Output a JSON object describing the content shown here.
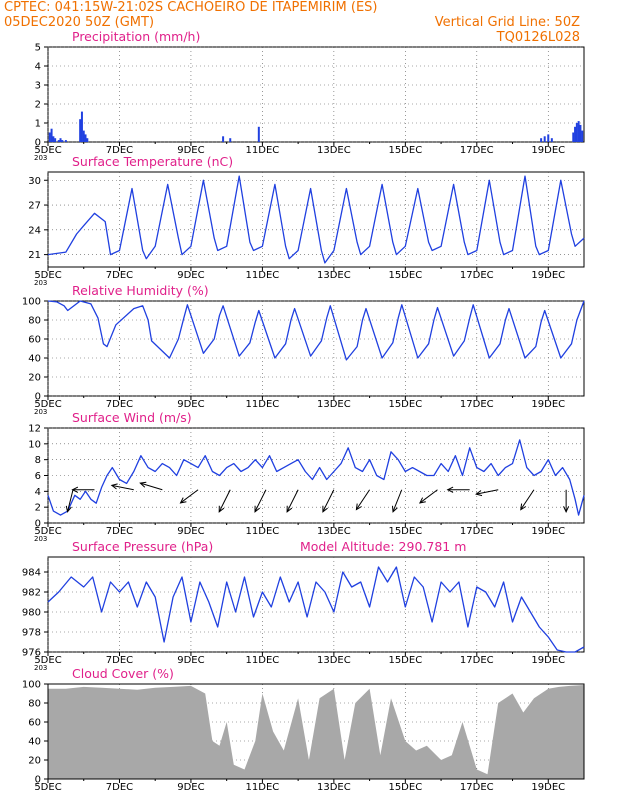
{
  "header": {
    "line1_left": "CPTEC:  041:15W-21:02S  CACHOEIRO DE ITAPEMIRIM (ES)",
    "line2_left": "05DEC2020 50Z (GMT)",
    "line2_right": "Vertical Grid Line: 50Z",
    "line3_right": "TQ0126L028"
  },
  "colors": {
    "header": "#f07000",
    "title": "#e0208a",
    "line": "#2040e0",
    "cloud": "#a8a8a8"
  },
  "chart_data": [
    {
      "id": "precip",
      "type": "bar",
      "title": "Precipitation (mm/h)",
      "ylim": [
        0,
        5
      ],
      "yticks": [
        0,
        1,
        2,
        3,
        4,
        5
      ],
      "xlim": [
        0,
        15
      ],
      "xticks": [
        "5DEC",
        "7DEC",
        "9DEC",
        "11DEC",
        "13DEC",
        "15DEC",
        "17DEC",
        "19DEC"
      ],
      "x_note": "203",
      "x": [
        0.05,
        0.1,
        0.15,
        0.2,
        0.3,
        0.35,
        0.4,
        0.5,
        0.9,
        0.95,
        1.0,
        1.05,
        1.1,
        4.9,
        5.1,
        5.9,
        13.8,
        13.9,
        14.0,
        14.1,
        14.7,
        14.75,
        14.8,
        14.85,
        14.9,
        14.95
      ],
      "values": [
        0.5,
        0.7,
        0.3,
        0.2,
        0.1,
        0.2,
        0.1,
        0.1,
        1.2,
        1.6,
        0.6,
        0.4,
        0.2,
        0.3,
        0.2,
        0.8,
        0.2,
        0.3,
        0.4,
        0.2,
        0.5,
        0.8,
        1.0,
        1.1,
        0.9,
        0.6
      ]
    },
    {
      "id": "temp",
      "type": "line",
      "title": "Surface Temperature (nC)",
      "ylim": [
        19.5,
        31
      ],
      "yticks": [
        21,
        24,
        27,
        30
      ],
      "xlim": [
        0,
        15
      ],
      "xticks": [
        "5DEC",
        "7DEC",
        "9DEC",
        "11DEC",
        "13DEC",
        "15DEC",
        "17DEC",
        "19DEC"
      ],
      "x_note": "203",
      "x": [
        0,
        0.5,
        0.8,
        1.0,
        1.3,
        1.6,
        1.75,
        2.0,
        2.35,
        2.65,
        2.75,
        3.0,
        3.35,
        3.65,
        3.75,
        4.0,
        4.35,
        4.65,
        4.75,
        5.0,
        5.35,
        5.65,
        5.75,
        6.0,
        6.35,
        6.65,
        6.75,
        7.0,
        7.35,
        7.65,
        7.75,
        8.0,
        8.35,
        8.65,
        8.75,
        9.0,
        9.35,
        9.65,
        9.75,
        10.0,
        10.35,
        10.65,
        10.75,
        11.0,
        11.35,
        11.65,
        11.75,
        12.0,
        12.35,
        12.65,
        12.75,
        13.0,
        13.35,
        13.65,
        13.75,
        14.0,
        14.35,
        14.65,
        14.75,
        15.0
      ],
      "values": [
        21.0,
        21.3,
        23.5,
        24.5,
        26.0,
        25.0,
        21.0,
        21.5,
        29.0,
        21.5,
        20.5,
        22.0,
        29.5,
        23.0,
        21.0,
        22.0,
        30.0,
        23.0,
        21.5,
        22.0,
        30.5,
        22.5,
        21.5,
        22.0,
        29.5,
        22.0,
        20.5,
        21.5,
        29.0,
        21.5,
        20.0,
        21.5,
        29.0,
        22.5,
        21.0,
        22.0,
        29.5,
        22.5,
        21.0,
        22.0,
        29.0,
        22.5,
        21.5,
        22.0,
        29.5,
        22.5,
        21.0,
        21.5,
        30.0,
        22.5,
        21.0,
        21.5,
        30.5,
        22.0,
        21.0,
        21.5,
        30.0,
        23.5,
        22.0,
        23.0
      ]
    },
    {
      "id": "rh",
      "type": "line",
      "title": "Relative Humidity (%)",
      "ylim": [
        0,
        100
      ],
      "yticks": [
        0,
        20,
        40,
        60,
        80,
        100
      ],
      "xlim": [
        0,
        15
      ],
      "xticks": [
        "5DEC",
        "7DEC",
        "9DEC",
        "11DEC",
        "13DEC",
        "15DEC",
        "17DEC",
        "19DEC"
      ],
      "x_note": "203",
      "x": [
        0,
        0.25,
        0.45,
        0.55,
        0.9,
        1.2,
        1.4,
        1.55,
        1.65,
        1.9,
        2.4,
        2.65,
        2.8,
        2.9,
        3.4,
        3.65,
        3.8,
        3.9,
        4.35,
        4.65,
        4.8,
        4.9,
        5.35,
        5.65,
        5.8,
        5.9,
        6.35,
        6.65,
        6.8,
        6.9,
        7.35,
        7.65,
        7.8,
        7.9,
        8.35,
        8.65,
        8.8,
        8.9,
        9.35,
        9.65,
        9.8,
        9.9,
        10.35,
        10.65,
        10.8,
        10.9,
        11.35,
        11.65,
        11.8,
        11.9,
        12.35,
        12.65,
        12.8,
        12.9,
        13.35,
        13.65,
        13.8,
        13.9,
        14.35,
        14.65,
        14.8,
        15.0
      ],
      "values": [
        100,
        99,
        95,
        90,
        100,
        97,
        82,
        55,
        52,
        75,
        92,
        95,
        80,
        58,
        40,
        60,
        82,
        96,
        45,
        60,
        85,
        95,
        42,
        56,
        78,
        90,
        40,
        55,
        80,
        92,
        42,
        58,
        82,
        95,
        38,
        52,
        80,
        92,
        40,
        56,
        82,
        96,
        40,
        55,
        80,
        93,
        42,
        58,
        82,
        96,
        40,
        55,
        80,
        92,
        40,
        52,
        78,
        90,
        40,
        55,
        80,
        100
      ]
    },
    {
      "id": "wind",
      "type": "line",
      "title": "Surface Wind (m/s)",
      "ylim": [
        0,
        12
      ],
      "yticks": [
        0,
        2,
        4,
        6,
        8,
        10,
        12
      ],
      "xlim": [
        0,
        15
      ],
      "xticks": [
        "5DEC",
        "7DEC",
        "9DEC",
        "11DEC",
        "13DEC",
        "15DEC",
        "17DEC",
        "19DEC"
      ],
      "x_note": "203",
      "x": [
        0,
        0.15,
        0.35,
        0.55,
        0.75,
        0.9,
        1.05,
        1.2,
        1.35,
        1.5,
        1.65,
        1.8,
        2.0,
        2.2,
        2.4,
        2.6,
        2.8,
        3.0,
        3.2,
        3.4,
        3.6,
        3.8,
        4.0,
        4.2,
        4.4,
        4.6,
        4.8,
        5.0,
        5.2,
        5.4,
        5.6,
        5.8,
        6.0,
        6.2,
        6.4,
        6.6,
        6.8,
        7.0,
        7.2,
        7.4,
        7.6,
        7.8,
        8.0,
        8.2,
        8.4,
        8.6,
        8.8,
        9.0,
        9.2,
        9.4,
        9.6,
        9.8,
        10.0,
        10.2,
        10.4,
        10.6,
        10.8,
        11.0,
        11.2,
        11.4,
        11.6,
        11.8,
        12.0,
        12.2,
        12.4,
        12.6,
        12.8,
        13.0,
        13.2,
        13.4,
        13.6,
        13.8,
        14.0,
        14.2,
        14.4,
        14.6,
        14.75,
        14.85,
        15.0
      ],
      "values": [
        3.5,
        1.5,
        1.0,
        1.5,
        3.5,
        3.0,
        4.0,
        3.0,
        2.5,
        4.5,
        6.0,
        7.0,
        5.5,
        5.0,
        6.5,
        8.5,
        7.0,
        6.5,
        7.5,
        7.0,
        6.0,
        8.0,
        7.5,
        7.0,
        8.5,
        6.5,
        6.0,
        7.0,
        7.5,
        6.5,
        7.0,
        8.0,
        7.0,
        8.5,
        6.5,
        7.0,
        7.5,
        8.0,
        6.5,
        5.5,
        7.0,
        5.5,
        6.5,
        7.5,
        9.5,
        7.0,
        6.5,
        8.0,
        6.0,
        5.5,
        9.0,
        8.0,
        6.5,
        7.0,
        6.5,
        6.0,
        6.0,
        7.5,
        6.5,
        8.5,
        6.0,
        9.5,
        7.0,
        6.5,
        7.5,
        6.0,
        7.0,
        7.5,
        10.5,
        7.0,
        6.0,
        6.5,
        8.0,
        6.0,
        7.0,
        5.5,
        3.0,
        1.0,
        3.5
      ],
      "vectors": [
        {
          "x": 0.7,
          "u": -0.25,
          "v": -1.0
        },
        {
          "x": 1.3,
          "u": -1.0,
          "v": 0.0
        },
        {
          "x": 2.4,
          "u": -1.0,
          "v": 0.2
        },
        {
          "x": 3.2,
          "u": -1.0,
          "v": 0.3
        },
        {
          "x": 4.2,
          "u": -0.8,
          "v": -0.6
        },
        {
          "x": 5.1,
          "u": -0.5,
          "v": -1.0
        },
        {
          "x": 6.1,
          "u": -0.5,
          "v": -1.0
        },
        {
          "x": 7.0,
          "u": -0.5,
          "v": -1.0
        },
        {
          "x": 8.0,
          "u": -0.5,
          "v": -1.0
        },
        {
          "x": 9.0,
          "u": -0.6,
          "v": -0.9
        },
        {
          "x": 9.9,
          "u": -0.4,
          "v": -1.0
        },
        {
          "x": 10.9,
          "u": -0.8,
          "v": -0.6
        },
        {
          "x": 11.8,
          "u": -1.0,
          "v": 0.0
        },
        {
          "x": 12.6,
          "u": -1.0,
          "v": -0.2
        },
        {
          "x": 13.6,
          "u": -0.6,
          "v": -0.9
        },
        {
          "x": 14.5,
          "u": 0.0,
          "v": -1.0
        }
      ]
    },
    {
      "id": "pressure",
      "type": "line",
      "title": "Surface Pressure (hPa)",
      "annotation": "Model Altitude: 290.781 m",
      "ylim": [
        976,
        985.5
      ],
      "yticks": [
        976,
        978,
        980,
        982,
        984
      ],
      "xlim": [
        0,
        15
      ],
      "xticks": [
        "5DEC",
        "7DEC",
        "9DEC",
        "11DEC",
        "13DEC",
        "15DEC",
        "17DEC",
        "19DEC"
      ],
      "x_note": "203",
      "x": [
        0,
        0.3,
        0.65,
        1.0,
        1.25,
        1.5,
        1.75,
        2.0,
        2.25,
        2.5,
        2.75,
        3.0,
        3.25,
        3.5,
        3.75,
        4.0,
        4.25,
        4.5,
        4.75,
        5.0,
        5.25,
        5.5,
        5.75,
        6.0,
        6.25,
        6.5,
        6.75,
        7.0,
        7.25,
        7.5,
        7.75,
        8.0,
        8.25,
        8.5,
        8.75,
        9.0,
        9.25,
        9.5,
        9.75,
        10.0,
        10.25,
        10.5,
        10.75,
        11.0,
        11.25,
        11.5,
        11.75,
        12.0,
        12.25,
        12.5,
        12.75,
        13.0,
        13.25,
        13.5,
        13.75,
        14.0,
        14.25,
        14.5,
        14.75,
        15.0
      ],
      "values": [
        981.0,
        982.0,
        983.5,
        982.5,
        983.5,
        980.0,
        983.0,
        982.0,
        983.0,
        980.5,
        983.0,
        981.5,
        977.0,
        981.5,
        983.5,
        979.0,
        983.0,
        981.0,
        978.5,
        983.0,
        980.0,
        983.5,
        979.5,
        982.0,
        980.5,
        983.5,
        981.0,
        983.0,
        979.5,
        983.0,
        982.0,
        980.0,
        984.0,
        982.5,
        983.0,
        980.5,
        984.5,
        983.0,
        984.5,
        980.5,
        983.5,
        982.5,
        979.0,
        983.0,
        982.0,
        983.0,
        978.5,
        982.5,
        982.0,
        980.5,
        983.0,
        979.0,
        981.5,
        980.0,
        978.5,
        977.5,
        976.2,
        975.5,
        975.0,
        976.5
      ]
    },
    {
      "id": "cloud",
      "type": "area",
      "title": "Cloud Cover (%)",
      "ylim": [
        0,
        100
      ],
      "yticks": [
        0,
        20,
        40,
        60,
        80,
        100
      ],
      "xlim": [
        0,
        15
      ],
      "xticks": [
        "5DEC",
        "7DEC",
        "9DEC",
        "11DEC",
        "13DEC",
        "15DEC",
        "17DEC",
        "19DEC"
      ],
      "x": [
        0,
        0.5,
        1.0,
        1.5,
        2.0,
        2.5,
        3.0,
        3.5,
        4.0,
        4.4,
        4.6,
        4.8,
        5.0,
        5.2,
        5.5,
        5.8,
        6.0,
        6.3,
        6.6,
        7.0,
        7.3,
        7.6,
        8.0,
        8.3,
        8.6,
        9.0,
        9.3,
        9.6,
        10.0,
        10.3,
        10.6,
        11.0,
        11.3,
        11.6,
        12.0,
        12.3,
        12.6,
        13.0,
        13.3,
        13.6,
        14.0,
        14.3,
        14.6,
        15.0
      ],
      "values": [
        95,
        95,
        97,
        96,
        95,
        94,
        96,
        97,
        98,
        90,
        40,
        35,
        60,
        15,
        10,
        40,
        90,
        50,
        30,
        85,
        20,
        85,
        95,
        20,
        80,
        95,
        25,
        85,
        40,
        30,
        35,
        20,
        25,
        60,
        10,
        5,
        80,
        90,
        70,
        85,
        95,
        97,
        98,
        99
      ]
    }
  ]
}
